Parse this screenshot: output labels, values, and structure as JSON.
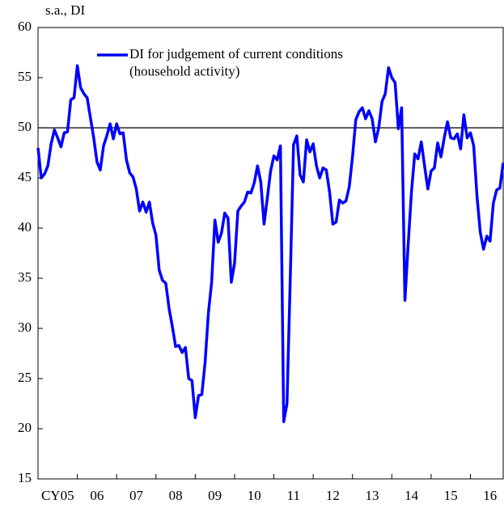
{
  "chart_data": {
    "type": "line",
    "y_axis_label": "s.a., DI",
    "categories": [
      null,
      null,
      null,
      null,
      null,
      null,
      "CY05",
      null,
      null,
      null,
      null,
      null,
      null,
      null,
      null,
      null,
      null,
      null,
      "06",
      null,
      null,
      null,
      null,
      null,
      null,
      null,
      null,
      null,
      null,
      null,
      "07",
      null,
      null,
      null,
      null,
      null,
      null,
      null,
      null,
      null,
      null,
      null,
      "08",
      null,
      null,
      null,
      null,
      null,
      null,
      null,
      null,
      null,
      null,
      null,
      "09",
      null,
      null,
      null,
      null,
      null,
      null,
      null,
      null,
      null,
      null,
      null,
      "10",
      null,
      null,
      null,
      null,
      null,
      null,
      null,
      null,
      null,
      null,
      null,
      "11",
      null,
      null,
      null,
      null,
      null,
      null,
      null,
      null,
      null,
      null,
      null,
      "12",
      null,
      null,
      null,
      null,
      null,
      null,
      null,
      null,
      null,
      null,
      null,
      "13",
      null,
      null,
      null,
      null,
      null,
      null,
      null,
      null,
      null,
      null,
      null,
      "14",
      null,
      null,
      null,
      null,
      null,
      null,
      null,
      null,
      null,
      null,
      null,
      "15",
      null,
      null,
      null,
      null,
      null,
      null,
      null,
      null,
      null,
      null,
      null,
      "16",
      null,
      null,
      null,
      null
    ],
    "series": [
      {
        "name": "DI for judgement of current conditions\n(household activity)",
        "color": "#0000ff",
        "values": [
          48.0,
          45.0,
          45.4,
          46.2,
          48.4,
          49.8,
          49.0,
          48.1,
          49.5,
          49.6,
          52.8,
          53.0,
          56.2,
          54.0,
          53.4,
          53.0,
          51.0,
          49.0,
          46.6,
          45.8,
          48.2,
          49.2,
          50.4,
          48.9,
          50.4,
          49.4,
          49.5,
          46.8,
          45.5,
          45.1,
          43.9,
          41.7,
          42.6,
          41.6,
          42.6,
          40.5,
          39.3,
          35.8,
          34.8,
          34.5,
          32.0,
          30.2,
          28.2,
          28.3,
          27.6,
          28.1,
          25.0,
          24.8,
          21.1,
          23.3,
          23.4,
          26.6,
          31.5,
          34.6,
          40.8,
          38.6,
          39.5,
          41.5,
          41.0,
          34.6,
          36.5,
          41.7,
          42.2,
          42.6,
          43.6,
          43.5,
          44.5,
          46.2,
          44.6,
          40.4,
          43.0,
          45.7,
          47.2,
          46.8,
          48.2,
          20.7,
          22.5,
          35.0,
          48.3,
          49.2,
          45.3,
          44.6,
          48.8,
          47.6,
          48.4,
          46.2,
          45.0,
          46.0,
          45.8,
          43.6,
          40.4,
          40.6,
          42.8,
          42.5,
          42.7,
          44.1,
          47.1,
          50.8,
          51.6,
          52.0,
          50.9,
          51.7,
          50.9,
          48.6,
          50.0,
          52.6,
          53.4,
          56.0,
          55.0,
          54.5,
          49.9,
          52.0,
          32.8,
          38.4,
          43.6,
          47.4,
          46.9,
          48.6,
          46.2,
          43.9,
          45.7,
          46.0,
          48.5,
          47.1,
          49.0,
          50.6,
          49.0,
          48.9,
          49.4,
          47.9,
          51.3,
          49.0,
          49.5,
          48.2,
          43.2,
          39.6,
          37.9,
          39.2,
          38.7,
          42.5,
          43.8,
          44.0,
          46.5
        ]
      }
    ],
    "ylim": [
      15,
      60
    ],
    "yticks": [
      15,
      20,
      25,
      30,
      35,
      40,
      45,
      50,
      55,
      60
    ],
    "reference_line": 50
  }
}
